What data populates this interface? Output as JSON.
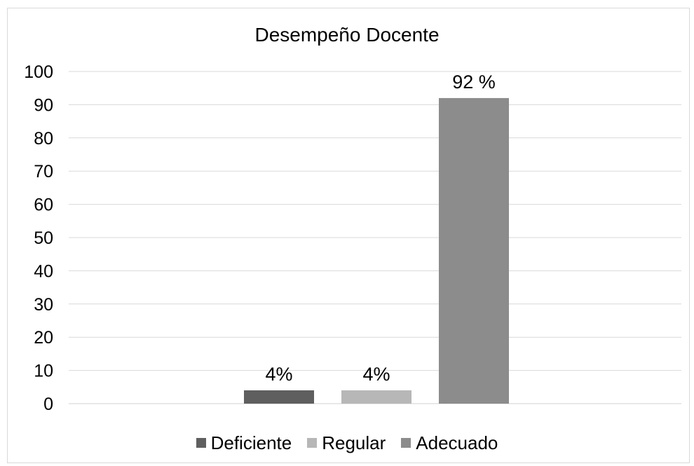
{
  "chart_data": {
    "type": "bar",
    "title": "Desempeño Docente",
    "xlabel": "",
    "ylabel": "",
    "ylim": [
      0,
      100
    ],
    "yticks": [
      0,
      10,
      20,
      30,
      40,
      50,
      60,
      70,
      80,
      90,
      100
    ],
    "grid": true,
    "legend": "bottom",
    "series": [
      {
        "name": "Deficiente",
        "value": 4,
        "label": "4%",
        "color": "#5f5f5f"
      },
      {
        "name": "Regular",
        "value": 4,
        "label": "4%",
        "color": "#b7b7b7"
      },
      {
        "name": "Adecuado",
        "value": 92,
        "label": "92 %",
        "color": "#8c8c8c"
      }
    ]
  }
}
